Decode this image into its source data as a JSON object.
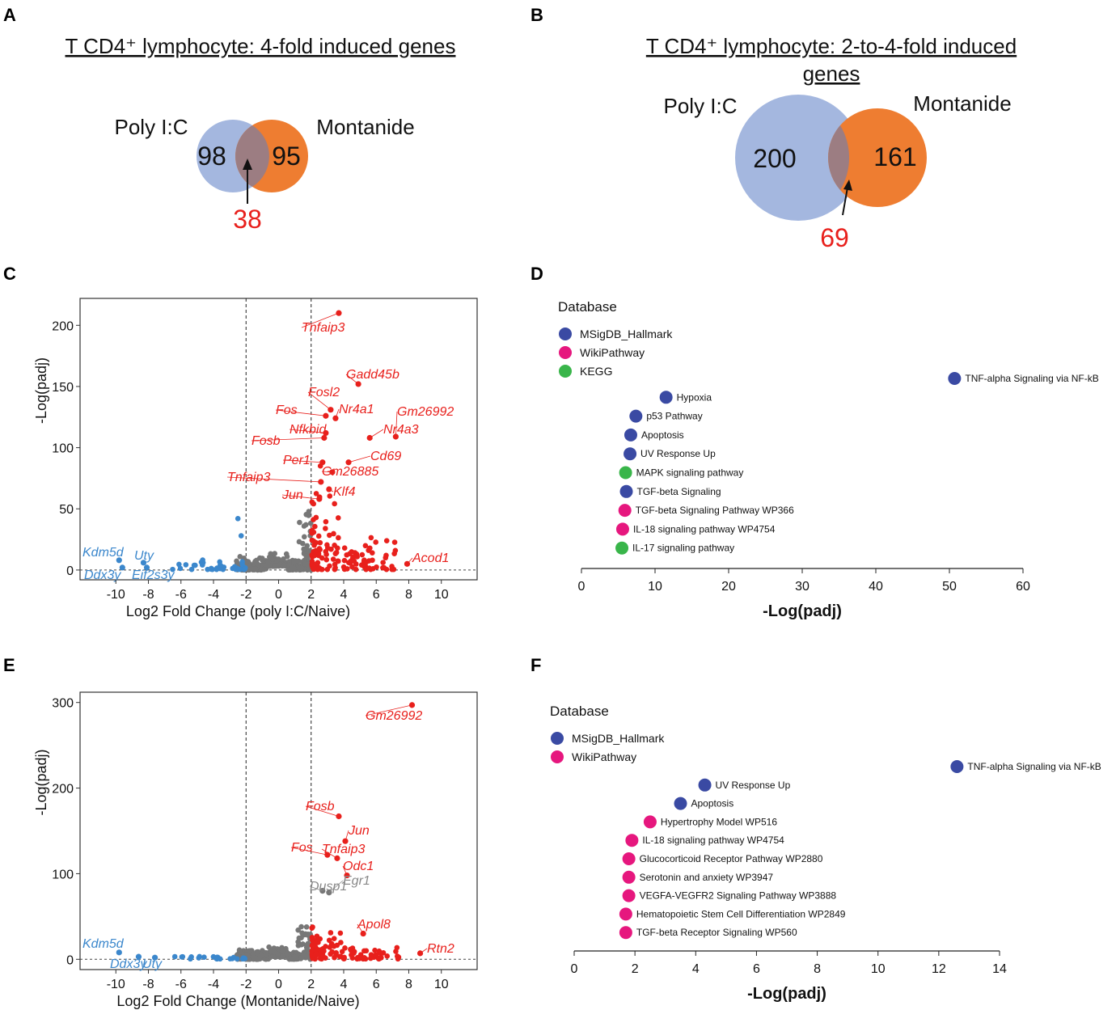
{
  "panel_labels": [
    "A",
    "B",
    "C",
    "D",
    "E",
    "F"
  ],
  "colors": {
    "poly": "#a4b7df",
    "montanide": "#ee7d31",
    "overlap": "#9c7d82",
    "up": "#e8201c",
    "down": "#3b87cc",
    "ns": "#777777",
    "hallmark": "#3a4aa3",
    "wiki": "#e6177e",
    "kegg": "#39b54a"
  },
  "chart_data": [
    {
      "type": "venn",
      "panel": "A",
      "title": "T CD4⁺ lymphocyte: 4-fold induced genes",
      "sets": [
        {
          "name": "Poly I:C",
          "only": 98
        },
        {
          "name": "Montanide",
          "only": 95
        }
      ],
      "overlap": 38
    },
    {
      "type": "venn",
      "panel": "B",
      "title_lines": [
        "T CD4⁺ lymphocyte: 2-to-4-fold induced",
        "genes"
      ],
      "sets": [
        {
          "name": "Poly I:C",
          "only": 200
        },
        {
          "name": "Montanide",
          "only": 161
        }
      ],
      "overlap": 69
    },
    {
      "type": "scatter",
      "panel": "C",
      "subtype": "volcano",
      "xlabel": "Log2 Fold Change (poly I:C/Naive)",
      "ylabel": "-Log(padj)",
      "xlim": [
        -12.2,
        12.2
      ],
      "ylim": [
        -8,
        222
      ],
      "xticks": [
        -10,
        -8,
        -6,
        -4,
        -2,
        0,
        2,
        4,
        6,
        8,
        10
      ],
      "yticks": [
        0,
        50,
        100,
        150,
        200
      ],
      "thresholds_x": [
        -2,
        2
      ],
      "labeled_up": [
        {
          "gene": "Tnfaip3",
          "x": 3.7,
          "y": 210
        },
        {
          "gene": "Gadd45b",
          "x": 4.9,
          "y": 152
        },
        {
          "gene": "Fosl2",
          "x": 3.2,
          "y": 131
        },
        {
          "gene": "Nr4a1",
          "x": 3.5,
          "y": 124
        },
        {
          "gene": "Fos",
          "x": 2.9,
          "y": 126
        },
        {
          "gene": "Gm26992",
          "x": 7.2,
          "y": 109
        },
        {
          "gene": "Nr4a3",
          "x": 5.6,
          "y": 108
        },
        {
          "gene": "Nfkbid",
          "x": 2.9,
          "y": 112
        },
        {
          "gene": "Fosb",
          "x": 2.8,
          "y": 108
        },
        {
          "gene": "Cd69",
          "x": 4.3,
          "y": 88
        },
        {
          "gene": "Per1",
          "x": 2.7,
          "y": 88
        },
        {
          "gene": "Gm26885",
          "x": 3.3,
          "y": 80
        },
        {
          "gene": "Tnfaip3",
          "x": 2.6,
          "y": 72
        },
        {
          "gene": "Klf4",
          "x": 3.1,
          "y": 66
        },
        {
          "gene": "Jun",
          "x": 2.5,
          "y": 58
        },
        {
          "gene": "Acod1",
          "x": 7.9,
          "y": 5
        }
      ],
      "labeled_down": [
        {
          "gene": "Kdm5d",
          "x": -9.8,
          "y": 8
        },
        {
          "gene": "Uty",
          "x": -8.3,
          "y": 6
        },
        {
          "gene": "Ddx3y",
          "x": -9.6,
          "y": 2
        },
        {
          "gene": "Eif2s3y",
          "x": -8.1,
          "y": 2
        }
      ]
    },
    {
      "type": "scatter",
      "panel": "D",
      "subtype": "enrichment",
      "xlabel": "-Log(padj)",
      "xlim": [
        0,
        60
      ],
      "xticks": [
        0,
        10,
        20,
        30,
        40,
        50,
        60
      ],
      "legend_title": "Database",
      "legend": [
        {
          "name": "MSigDB_Hallmark",
          "key": "hallmark"
        },
        {
          "name": "WikiPathway",
          "key": "wiki"
        },
        {
          "name": "KEGG",
          "key": "kegg"
        }
      ],
      "terms": [
        {
          "term": "TNF-alpha Signaling via NF-kB",
          "value": 50.7,
          "db": "hallmark"
        },
        {
          "term": "Hypoxia",
          "value": 11.5,
          "db": "hallmark"
        },
        {
          "term": "p53 Pathway",
          "value": 7.4,
          "db": "hallmark"
        },
        {
          "term": "Apoptosis",
          "value": 6.7,
          "db": "hallmark"
        },
        {
          "term": "UV Response Up",
          "value": 6.6,
          "db": "hallmark"
        },
        {
          "term": "MAPK signaling pathway",
          "value": 6.0,
          "db": "kegg"
        },
        {
          "term": "TGF-beta Signaling",
          "value": 6.1,
          "db": "hallmark"
        },
        {
          "term": "TGF-beta Signaling Pathway WP366",
          "value": 5.9,
          "db": "wiki"
        },
        {
          "term": "IL-18 signaling pathway WP4754",
          "value": 5.6,
          "db": "wiki"
        },
        {
          "term": "IL-17 signaling pathway",
          "value": 5.5,
          "db": "kegg"
        }
      ]
    },
    {
      "type": "scatter",
      "panel": "E",
      "subtype": "volcano",
      "xlabel": "Log2 Fold Change (Montanide/Naive)",
      "ylabel": "-Log(padj)",
      "xlim": [
        -12.2,
        12.2
      ],
      "ylim": [
        -12,
        312
      ],
      "xticks": [
        -10,
        -8,
        -6,
        -4,
        -2,
        0,
        2,
        4,
        6,
        8,
        10
      ],
      "yticks": [
        0,
        100,
        200,
        300
      ],
      "thresholds_x": [
        -2,
        2
      ],
      "labeled_up": [
        {
          "gene": "Gm26992",
          "x": 8.2,
          "y": 297
        },
        {
          "gene": "Fosb",
          "x": 3.7,
          "y": 167
        },
        {
          "gene": "Jun",
          "x": 4.1,
          "y": 138
        },
        {
          "gene": "Fos",
          "x": 3.0,
          "y": 122
        },
        {
          "gene": "Tnfaip3",
          "x": 3.6,
          "y": 118
        },
        {
          "gene": "Odc1",
          "x": 4.2,
          "y": 98
        },
        {
          "gene": "Apol8",
          "x": 5.2,
          "y": 30
        },
        {
          "gene": "Rtn2",
          "x": 8.7,
          "y": 7
        }
      ],
      "labeled_ns": [
        {
          "gene": "Dusp1",
          "x": 2.7,
          "y": 80
        },
        {
          "gene": "Egr1",
          "x": 3.1,
          "y": 78
        }
      ],
      "labeled_down": [
        {
          "gene": "Kdm5d",
          "x": -9.8,
          "y": 8
        },
        {
          "gene": "Ddx3y",
          "x": -8.6,
          "y": 3
        },
        {
          "gene": "Uty",
          "x": -7.6,
          "y": 2
        }
      ]
    },
    {
      "type": "scatter",
      "panel": "F",
      "subtype": "enrichment",
      "xlabel": "-Log(padj)",
      "xlim": [
        0,
        14
      ],
      "xticks": [
        0,
        2,
        4,
        6,
        8,
        10,
        12,
        14
      ],
      "legend_title": "Database",
      "legend": [
        {
          "name": "MSigDB_Hallmark",
          "key": "hallmark"
        },
        {
          "name": "WikiPathway",
          "key": "wiki"
        }
      ],
      "terms": [
        {
          "term": "TNF-alpha Signaling via NF-kB",
          "value": 12.6,
          "db": "hallmark"
        },
        {
          "term": "UV Response Up",
          "value": 4.3,
          "db": "hallmark"
        },
        {
          "term": "Apoptosis",
          "value": 3.5,
          "db": "hallmark"
        },
        {
          "term": "Hypertrophy Model WP516",
          "value": 2.5,
          "db": "wiki"
        },
        {
          "term": "IL-18 signaling pathway WP4754",
          "value": 1.9,
          "db": "wiki"
        },
        {
          "term": "Glucocorticoid Receptor Pathway WP2880",
          "value": 1.8,
          "db": "wiki"
        },
        {
          "term": "Serotonin and anxiety WP3947",
          "value": 1.8,
          "db": "wiki"
        },
        {
          "term": "VEGFA-VEGFR2 Signaling Pathway WP3888",
          "value": 1.8,
          "db": "wiki"
        },
        {
          "term": "Hematopoietic Stem Cell Differentiation WP2849",
          "value": 1.7,
          "db": "wiki"
        },
        {
          "term": "TGF-beta Receptor Signaling WP560",
          "value": 1.7,
          "db": "wiki"
        }
      ]
    }
  ]
}
